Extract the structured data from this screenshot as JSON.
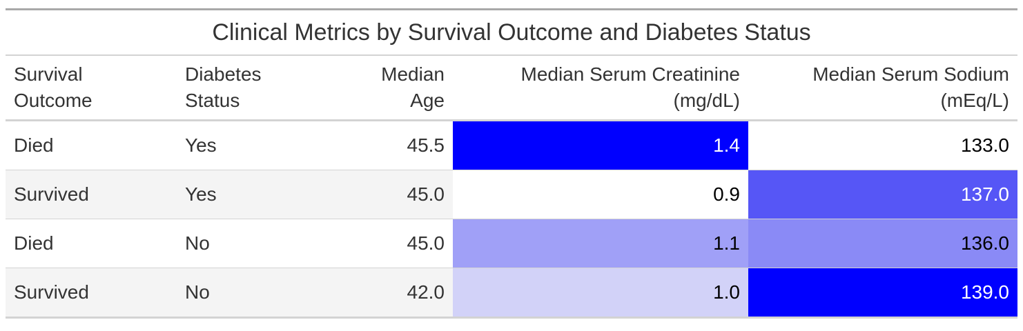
{
  "title": "Clinical Metrics by Survival Outcome and Diabetes Status",
  "columns": {
    "outcome": [
      "Survival",
      "Outcome"
    ],
    "diabetes": [
      "Diabetes",
      "Status"
    ],
    "age": [
      "Median",
      "Age"
    ],
    "creatinine": [
      "Median Serum Creatinine",
      "(mg/dL)"
    ],
    "sodium": [
      "Median Serum Sodium",
      "(mEq/L)"
    ]
  },
  "rows": [
    {
      "outcome": "Died",
      "diabetes": "Yes",
      "age": "45.5",
      "creatinine": "1.4",
      "sodium": "133.0"
    },
    {
      "outcome": "Survived",
      "diabetes": "Yes",
      "age": "45.0",
      "creatinine": "0.9",
      "sodium": "137.0"
    },
    {
      "outcome": "Died",
      "diabetes": "No",
      "age": "45.0",
      "creatinine": "1.1",
      "sodium": "136.0"
    },
    {
      "outcome": "Survived",
      "diabetes": "No",
      "age": "42.0",
      "creatinine": "1.0",
      "sodium": "139.0"
    }
  ],
  "heat_colors": {
    "creatinine": [
      "#0000ff",
      "#ffffff",
      "#a0a0f7",
      "#d2d2f8"
    ],
    "sodium": [
      "#ffffff",
      "#5656f6",
      "#8a8af6",
      "#0000ff"
    ]
  },
  "heat_text_colors": {
    "creatinine": [
      "#ffffff",
      "#000000",
      "#000000",
      "#000000"
    ],
    "sodium": [
      "#000000",
      "#ffffff",
      "#000000",
      "#ffffff"
    ]
  }
}
